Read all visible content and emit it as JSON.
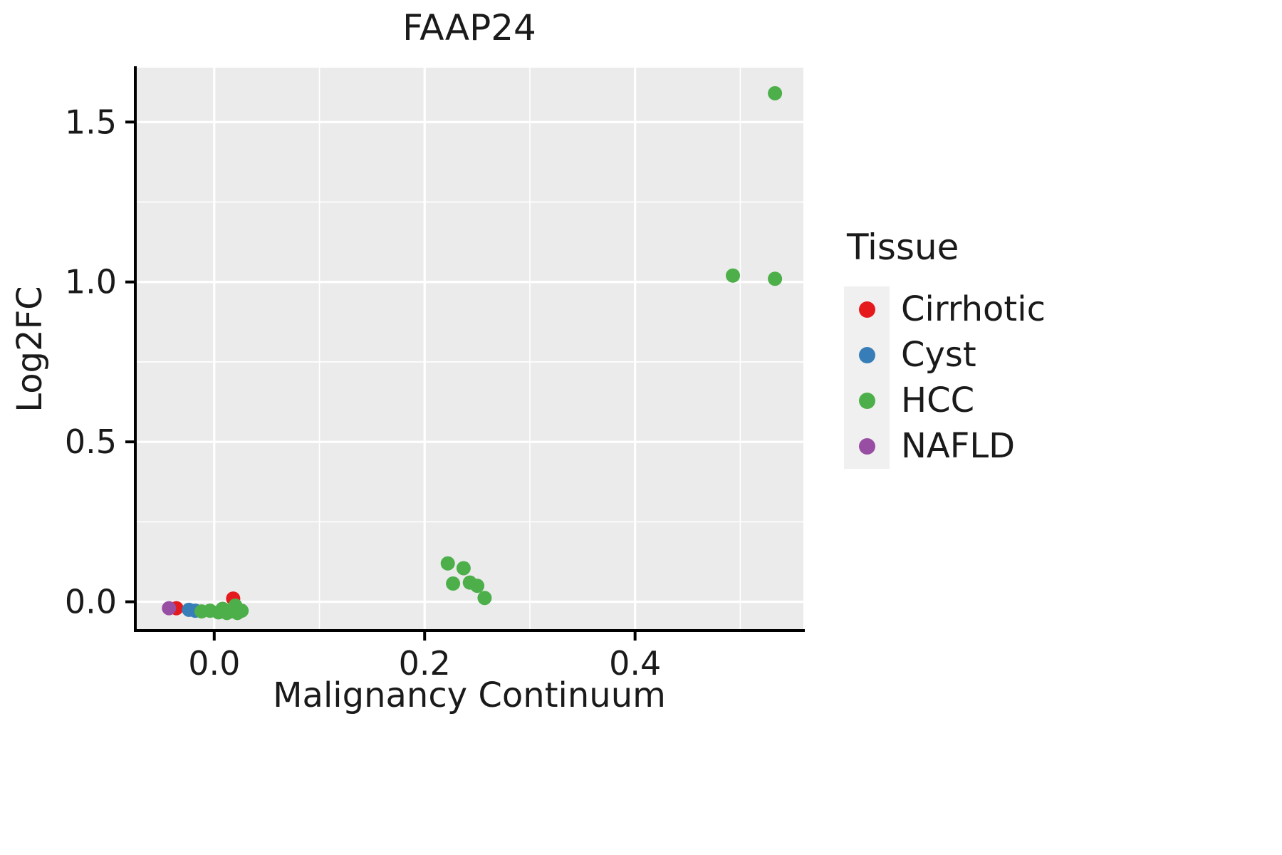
{
  "chart_data": {
    "type": "scatter",
    "title": "FAAP24",
    "xlabel": "Malignancy Continuum",
    "ylabel": "Log2FC",
    "legend_title": "Tissue",
    "legend_position": "right",
    "grid": "on",
    "panel_bg": "#EBEBEB",
    "grid_color": "#FFFFFF",
    "axis_color": "#000000",
    "xlim": [
      -0.075,
      0.56
    ],
    "ylim": [
      -0.09,
      1.67
    ],
    "x_ticks": [
      0.0,
      0.2,
      0.4
    ],
    "x_tick_labels": [
      "0.0",
      "0.2",
      "0.4"
    ],
    "y_ticks": [
      0.0,
      0.5,
      1.0,
      1.5
    ],
    "y_tick_labels": [
      "0.0",
      "0.5",
      "1.0",
      "1.5"
    ],
    "x_minor": [
      0.1,
      0.3,
      0.5
    ],
    "y_minor": [
      0.25,
      0.75,
      1.25
    ],
    "series": [
      {
        "name": "Cirrhotic",
        "color": "#E41A1C",
        "points": [
          [
            -0.036,
            -0.02
          ],
          [
            0.018,
            0.01
          ]
        ]
      },
      {
        "name": "Cyst",
        "color": "#377EB8",
        "points": [
          [
            -0.024,
            -0.025
          ],
          [
            -0.018,
            -0.028
          ]
        ]
      },
      {
        "name": "HCC",
        "color": "#4DAF4A",
        "points": [
          [
            -0.012,
            -0.03
          ],
          [
            -0.004,
            -0.028
          ],
          [
            0.004,
            -0.033
          ],
          [
            0.008,
            -0.022
          ],
          [
            0.012,
            -0.035
          ],
          [
            0.016,
            -0.03
          ],
          [
            0.02,
            -0.012
          ],
          [
            0.022,
            -0.035
          ],
          [
            0.026,
            -0.028
          ],
          [
            0.222,
            0.12
          ],
          [
            0.227,
            0.057
          ],
          [
            0.237,
            0.105
          ],
          [
            0.243,
            0.06
          ],
          [
            0.25,
            0.05
          ],
          [
            0.257,
            0.012
          ],
          [
            0.493,
            1.02
          ],
          [
            0.533,
            1.01
          ],
          [
            0.533,
            1.59
          ]
        ]
      },
      {
        "name": "NAFLD",
        "color": "#984EA3",
        "points": [
          [
            -0.043,
            -0.02
          ]
        ]
      }
    ]
  }
}
